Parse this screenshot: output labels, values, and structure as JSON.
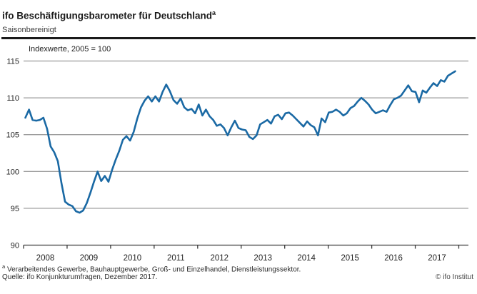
{
  "header": {
    "title": "ifo Beschäftigungsbarometer für Deutschland",
    "title_superscript": "a",
    "subtitle": "Saisonbereinigt"
  },
  "chart_data": {
    "type": "line",
    "axis_note": "Indexwerte, 2005 = 100",
    "x_tick_years": [
      "2008",
      "2009",
      "2010",
      "2011",
      "2012",
      "2013",
      "2014",
      "2015",
      "2016",
      "2017"
    ],
    "y_ticks": [
      90,
      95,
      100,
      105,
      110,
      115
    ],
    "ylim": [
      90,
      115
    ],
    "grid": true,
    "legend": "none",
    "series": [
      {
        "name": "ifo Beschäftigungsbarometer",
        "frequency": "monthly",
        "start": "2008-01",
        "end": "2017-12",
        "values": [
          107.3,
          108.4,
          107.0,
          106.9,
          107.0,
          107.3,
          105.8,
          103.4,
          102.6,
          101.4,
          98.4,
          95.9,
          95.5,
          95.3,
          94.6,
          94.4,
          94.7,
          95.7,
          97.1,
          98.6,
          100.0,
          98.7,
          99.4,
          98.6,
          100.2,
          101.6,
          102.8,
          104.3,
          104.8,
          104.2,
          105.4,
          107.2,
          108.7,
          109.6,
          110.2,
          109.5,
          110.2,
          109.5,
          110.8,
          111.8,
          110.9,
          109.7,
          109.2,
          109.9,
          108.7,
          108.3,
          108.5,
          107.9,
          109.1,
          107.6,
          108.4,
          107.5,
          107.0,
          106.2,
          106.4,
          105.9,
          104.9,
          106.0,
          106.9,
          105.9,
          105.7,
          105.6,
          104.7,
          104.4,
          104.9,
          106.4,
          106.7,
          107.0,
          106.5,
          107.5,
          107.7,
          107.1,
          107.9,
          108.0,
          107.6,
          107.1,
          106.6,
          106.1,
          106.8,
          106.3,
          106.0,
          104.9,
          107.2,
          106.7,
          108.0,
          108.1,
          108.4,
          108.1,
          107.6,
          107.9,
          108.6,
          108.9,
          109.5,
          110.0,
          109.6,
          109.1,
          108.4,
          107.9,
          108.1,
          108.3,
          108.1,
          109.0,
          109.8,
          110.0,
          110.3,
          111.0,
          111.7,
          110.9,
          110.8,
          109.4,
          111.0,
          110.7,
          111.4,
          112.0,
          111.6,
          112.4,
          112.2,
          113.0,
          113.3,
          113.6
        ]
      }
    ]
  },
  "footer": {
    "footnote_marker": "a",
    "footnote_text": "Verarbeitendes Gewerbe, Bauhauptgewerbe, Groß- und Einzelhandel, Dienstleistungssektor.",
    "source": "Quelle: ifo Konjunkturumfragen, Dezember 2017.",
    "copyright": "© ifo Institut"
  },
  "colors": {
    "accent_blue": "#1a69a4",
    "grid_gray": "#9b9b9b",
    "axis_dark": "#3a3a3a",
    "header_rule": "#1a1a1a"
  }
}
